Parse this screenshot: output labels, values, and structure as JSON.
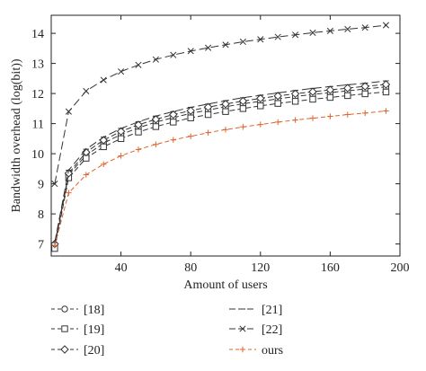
{
  "chart_data": {
    "type": "line",
    "title": "",
    "xlabel": "Amount of users",
    "ylabel": "Bandwidth overhead (log(bit))",
    "xlim": [
      0,
      200
    ],
    "ylim": [
      6.6,
      14.6
    ],
    "xticks": [
      40,
      80,
      120,
      160,
      200
    ],
    "yticks": [
      7,
      8,
      9,
      10,
      11,
      12,
      13,
      14
    ],
    "xtick_labels": [
      "40",
      "80",
      "120",
      "160",
      "200"
    ],
    "ytick_labels": [
      "7",
      "8",
      "9",
      "10",
      "11",
      "12",
      "13",
      "14"
    ],
    "grid": false,
    "legend_position": "bottom",
    "x": [
      2,
      10,
      20,
      30,
      40,
      50,
      60,
      70,
      80,
      90,
      100,
      110,
      120,
      130,
      140,
      150,
      160,
      170,
      180,
      192
    ],
    "series": [
      {
        "name": "[18]",
        "color": "#333333",
        "marker": "circle",
        "dash": "6,3",
        "values": [
          6.95,
          9.3,
          9.95,
          10.35,
          10.64,
          10.86,
          11.05,
          11.2,
          11.34,
          11.45,
          11.56,
          11.66,
          11.74,
          11.82,
          11.9,
          11.97,
          12.03,
          12.09,
          12.15,
          12.22
        ]
      },
      {
        "name": "[19]",
        "color": "#333333",
        "marker": "square",
        "dash": "6,3",
        "values": [
          6.85,
          9.2,
          9.85,
          10.23,
          10.5,
          10.72,
          10.9,
          11.05,
          11.19,
          11.3,
          11.4,
          11.5,
          11.59,
          11.67,
          11.74,
          11.81,
          11.87,
          11.93,
          11.99,
          12.05
        ]
      },
      {
        "name": "[20]",
        "color": "#333333",
        "marker": "diamond",
        "dash": "6,3",
        "values": [
          7.0,
          9.35,
          10.05,
          10.45,
          10.74,
          10.96,
          11.14,
          11.3,
          11.43,
          11.55,
          11.65,
          11.75,
          11.84,
          11.92,
          11.99,
          12.06,
          12.12,
          12.18,
          12.24,
          12.3
        ]
      },
      {
        "name": "[21]",
        "color": "#333333",
        "marker": "dash",
        "dash": "9,4",
        "values": [
          7.05,
          9.45,
          10.15,
          10.55,
          10.84,
          11.06,
          11.25,
          11.4,
          11.54,
          11.65,
          11.76,
          11.86,
          11.94,
          12.02,
          12.1,
          12.17,
          12.23,
          12.29,
          12.34,
          12.42
        ]
      },
      {
        "name": "[22]",
        "color": "#333333",
        "marker": "x",
        "dash": "9,4",
        "values": [
          9.0,
          11.4,
          12.08,
          12.45,
          12.73,
          12.95,
          13.13,
          13.28,
          13.41,
          13.52,
          13.62,
          13.72,
          13.8,
          13.88,
          13.95,
          14.02,
          14.08,
          14.14,
          14.19,
          14.27
        ]
      },
      {
        "name": "ours",
        "color": "#e0642e",
        "marker": "plus",
        "dash": "5,3",
        "values": [
          6.95,
          8.7,
          9.3,
          9.65,
          9.93,
          10.14,
          10.31,
          10.46,
          10.58,
          10.7,
          10.8,
          10.89,
          10.97,
          11.05,
          11.12,
          11.18,
          11.24,
          11.3,
          11.35,
          11.42
        ]
      }
    ]
  }
}
